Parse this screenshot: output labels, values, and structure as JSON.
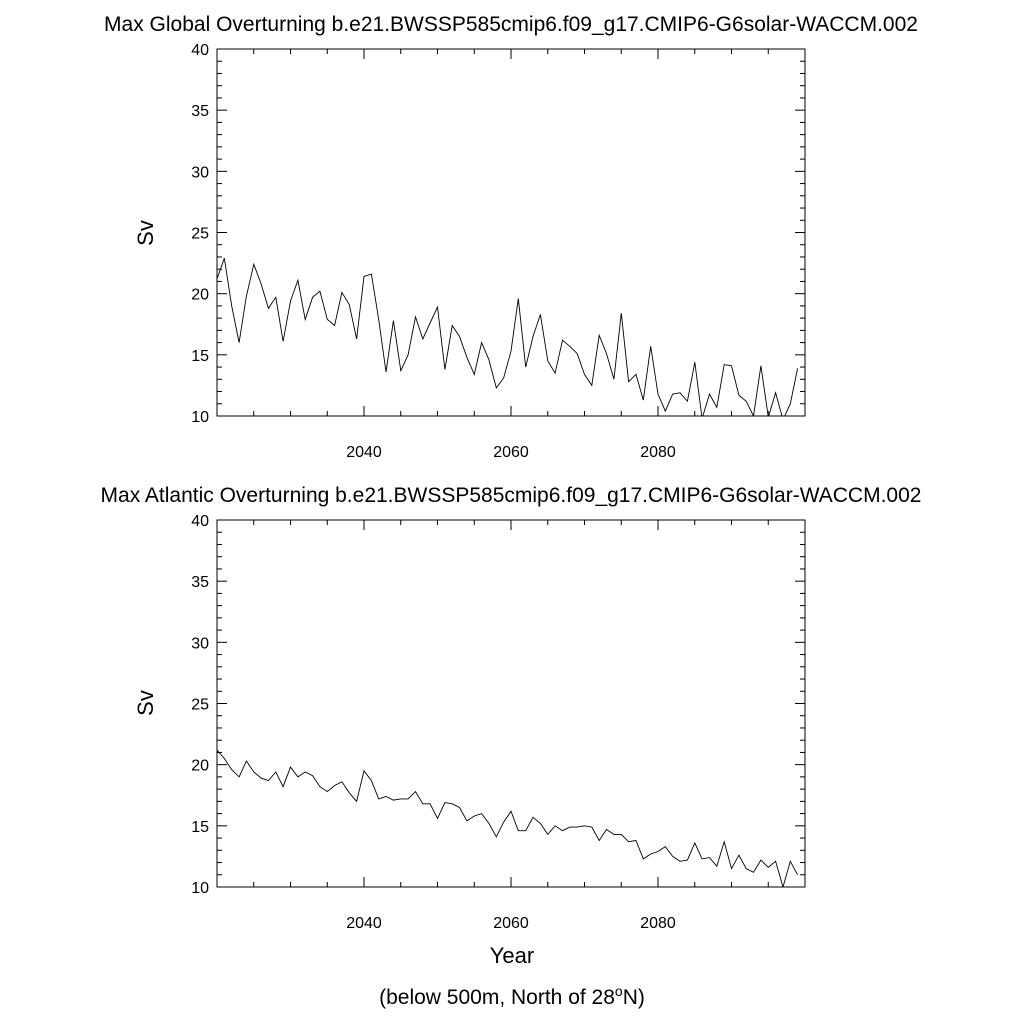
{
  "page": {
    "xlabel": "Year",
    "footnote_prefix": "(below 500m, North of 28",
    "footnote_sup": "o",
    "footnote_suffix": "N)"
  },
  "chart_data": [
    {
      "type": "line",
      "title": "Max Global Overturning b.e21.BWSSP585cmip6.f09_g17.CMIP6-G6solar-WACCM.002",
      "ylabel": "Sv",
      "xlabel": "",
      "ylim": [
        10,
        40
      ],
      "xlim": [
        2020,
        2100
      ],
      "yticks": [
        10,
        15,
        20,
        25,
        30,
        35,
        40
      ],
      "xticks": [
        2040,
        2060,
        2080
      ],
      "grid": false,
      "series": [
        {
          "x": [
            2020,
            2021,
            2022,
            2023,
            2024,
            2025,
            2026,
            2027,
            2028,
            2029,
            2030,
            2031,
            2032,
            2033,
            2034,
            2035,
            2036,
            2037,
            2038,
            2039,
            2040,
            2041,
            2042,
            2043,
            2044,
            2045,
            2046,
            2047,
            2048,
            2049,
            2050,
            2051,
            2052,
            2053,
            2054,
            2055,
            2056,
            2057,
            2058,
            2059,
            2060,
            2061,
            2062,
            2063,
            2064,
            2065,
            2066,
            2067,
            2068,
            2069,
            2070,
            2071,
            2072,
            2073,
            2074,
            2075,
            2076,
            2077,
            2078,
            2079,
            2080,
            2081,
            2082,
            2083,
            2084,
            2085,
            2086,
            2087,
            2088,
            2089,
            2090,
            2091,
            2092,
            2093,
            2094,
            2095,
            2096,
            2097,
            2098,
            2099
          ],
          "values": [
            21.2,
            22.9,
            19.0,
            16.0,
            19.8,
            22.4,
            20.8,
            18.8,
            19.7,
            16.1,
            19.4,
            21.1,
            17.9,
            19.7,
            20.2,
            17.9,
            17.4,
            20.1,
            19.1,
            16.3,
            21.4,
            21.6,
            17.9,
            13.6,
            17.8,
            13.7,
            15.0,
            18.1,
            16.3,
            17.6,
            18.9,
            13.8,
            17.4,
            16.5,
            14.8,
            13.4,
            16.0,
            14.6,
            12.3,
            13.1,
            15.3,
            19.6,
            14.0,
            16.5,
            18.3,
            14.5,
            13.5,
            16.2,
            15.7,
            15.1,
            13.4,
            12.5,
            16.6,
            15.1,
            13.0,
            18.4,
            12.8,
            13.4,
            11.3,
            15.7,
            11.8,
            10.4,
            11.8,
            11.9,
            11.2,
            14.4,
            9.8,
            11.8,
            10.7,
            14.2,
            14.1,
            11.7,
            11.2,
            10.0,
            14.1,
            9.9,
            11.9,
            9.7,
            11.0,
            13.9
          ]
        }
      ]
    },
    {
      "type": "line",
      "title": "Max Atlantic Overturning b.e21.BWSSP585cmip6.f09_g17.CMIP6-G6solar-WACCM.002",
      "ylabel": "Sv",
      "xlabel": "Year",
      "ylim": [
        10,
        40
      ],
      "xlim": [
        2020,
        2100
      ],
      "yticks": [
        10,
        15,
        20,
        25,
        30,
        35,
        40
      ],
      "xticks": [
        2040,
        2060,
        2080
      ],
      "grid": false,
      "series": [
        {
          "x": [
            2020,
            2021,
            2022,
            2023,
            2024,
            2025,
            2026,
            2027,
            2028,
            2029,
            2030,
            2031,
            2032,
            2033,
            2034,
            2035,
            2036,
            2037,
            2038,
            2039,
            2040,
            2041,
            2042,
            2043,
            2044,
            2045,
            2046,
            2047,
            2048,
            2049,
            2050,
            2051,
            2052,
            2053,
            2054,
            2055,
            2056,
            2057,
            2058,
            2059,
            2060,
            2061,
            2062,
            2063,
            2064,
            2065,
            2066,
            2067,
            2068,
            2069,
            2070,
            2071,
            2072,
            2073,
            2074,
            2075,
            2076,
            2077,
            2078,
            2079,
            2080,
            2081,
            2082,
            2083,
            2084,
            2085,
            2086,
            2087,
            2088,
            2089,
            2090,
            2091,
            2092,
            2093,
            2094,
            2095,
            2096,
            2097,
            2098,
            2099
          ],
          "values": [
            21.2,
            20.5,
            19.6,
            19.0,
            20.3,
            19.4,
            18.9,
            18.7,
            19.4,
            18.2,
            19.8,
            19.0,
            19.4,
            19.1,
            18.2,
            17.8,
            18.3,
            18.6,
            17.7,
            17.0,
            19.5,
            18.7,
            17.2,
            17.4,
            17.1,
            17.2,
            17.2,
            17.8,
            16.8,
            16.8,
            15.6,
            16.9,
            16.8,
            16.5,
            15.4,
            15.8,
            16.0,
            15.2,
            14.1,
            15.3,
            16.2,
            14.6,
            14.6,
            15.7,
            15.2,
            14.3,
            15.0,
            14.6,
            14.9,
            14.9,
            15.0,
            14.9,
            13.8,
            14.7,
            14.3,
            14.3,
            13.7,
            13.8,
            12.3,
            12.7,
            12.9,
            13.3,
            12.5,
            12.1,
            12.2,
            13.6,
            12.3,
            12.4,
            11.7,
            13.7,
            11.5,
            12.6,
            11.5,
            11.2,
            12.2,
            11.6,
            12.1,
            10.0,
            12.1,
            11.0
          ]
        }
      ]
    }
  ]
}
